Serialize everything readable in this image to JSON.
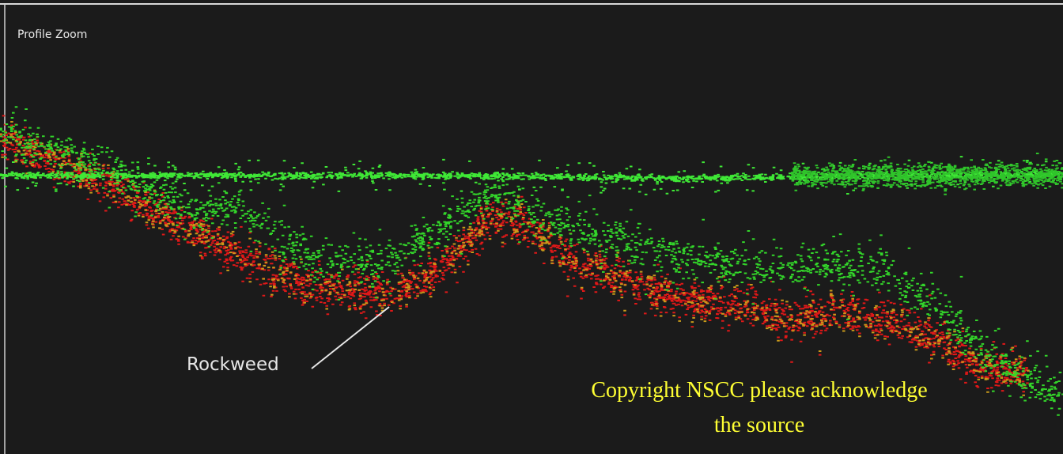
{
  "panel": {
    "title": "Profile Zoom"
  },
  "annotations": [
    {
      "label": "Rockweed"
    }
  ],
  "watermark": {
    "lines": [
      "Copyright NSCC please acknowledge",
      "the source"
    ]
  }
}
